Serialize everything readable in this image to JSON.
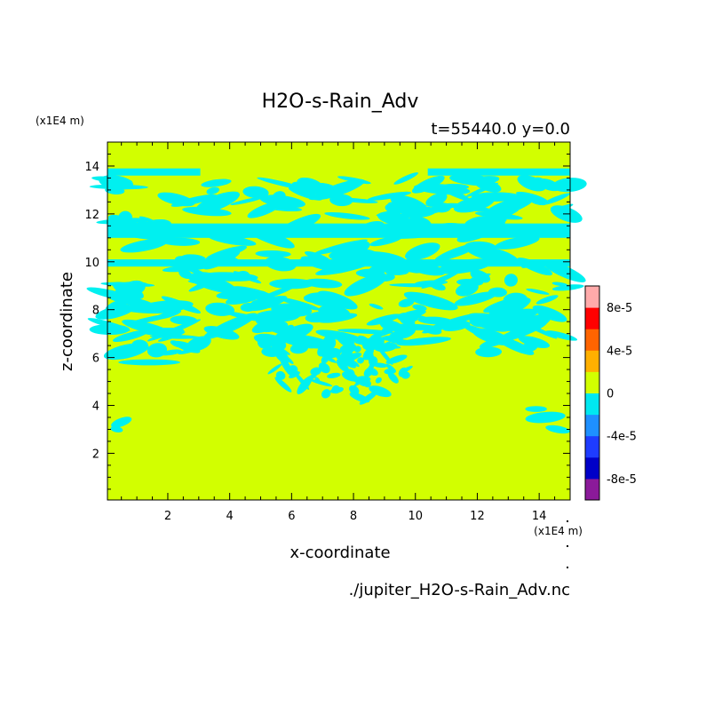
{
  "chart_data": {
    "type": "heatmap",
    "title": "H2O-s-Rain_Adv",
    "subtitle": "t=55440.0 y=0.0",
    "xlabel": "x-coordinate",
    "ylabel": "z-coordinate",
    "x_unit": "(x1E4 m)",
    "y_unit": "(x1E4 m)",
    "footer": "./jupiter_H2O-s-Rain_Adv.nc",
    "xlim": [
      0.05,
      15.0
    ],
    "ylim": [
      0.05,
      15.0
    ],
    "x_ticks": [
      "2",
      "4",
      "6",
      "8",
      "10",
      "12",
      "14"
    ],
    "y_ticks": [
      "2",
      "4",
      "6",
      "8",
      "10",
      "12",
      "14"
    ],
    "colorbar": {
      "labels": [
        "8e-5",
        "4e-5",
        "0",
        "-4e-5",
        "-8e-5"
      ],
      "levels": [
        -0.0001,
        -8e-05,
        -6e-05,
        -4e-05,
        -2e-05,
        0,
        2e-05,
        4e-05,
        6e-05,
        8e-05,
        0.0001
      ],
      "colors": [
        "#8b1a9a",
        "#0000c8",
        "#1e3cff",
        "#1e90ff",
        "#00e8f0",
        "#d2ff00",
        "#ffb000",
        "#ff6400",
        "#ff0000",
        "#ffaaaa"
      ]
    },
    "background_value_color": "#d2ff00",
    "negative_patch_color": "#00f0f0",
    "regions": [
      {
        "value": "0 to 2e-5",
        "color": "#d2ff00",
        "extent": "entire domain background"
      },
      {
        "value": "-2e-5 to 0",
        "color": "#00f0f0",
        "extent": "filamentary patches between z=3 and z=14, concentrated above z=6 with a dome around x=6–9.5 down to z=4"
      }
    ]
  }
}
